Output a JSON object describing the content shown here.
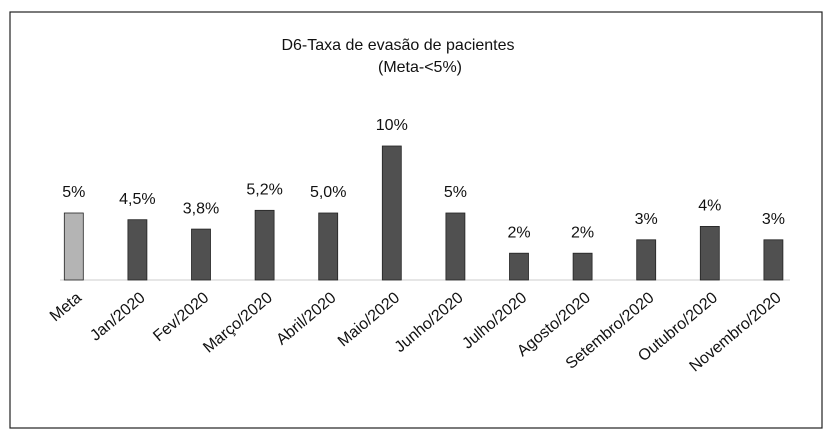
{
  "chart_data": {
    "type": "bar",
    "title": "D6-Taxa de evasão de pacientes",
    "subtitle": "(Meta-<5%)",
    "categories": [
      "Meta",
      "Jan/2020",
      "Fev/2020",
      "Março/2020",
      "Abril/2020",
      "Maio/2020",
      "Junho/2020",
      "Julho/2020",
      "Agosto/2020",
      "Setembro/2020",
      "Outubro/2020",
      "Novembro/2020"
    ],
    "values": [
      5,
      4.5,
      3.8,
      5.2,
      5.0,
      10,
      5,
      2,
      2,
      3,
      4,
      3
    ],
    "value_labels": [
      "5%",
      "4,5%",
      "3,8%",
      "5,2%",
      "5,0%",
      "10%",
      "5%",
      "2%",
      "2%",
      "3%",
      "4%",
      "3%"
    ],
    "colors": [
      "#b4b4b4",
      "#505050",
      "#505050",
      "#505050",
      "#505050",
      "#505050",
      "#505050",
      "#505050",
      "#505050",
      "#505050",
      "#505050",
      "#505050"
    ]
  }
}
